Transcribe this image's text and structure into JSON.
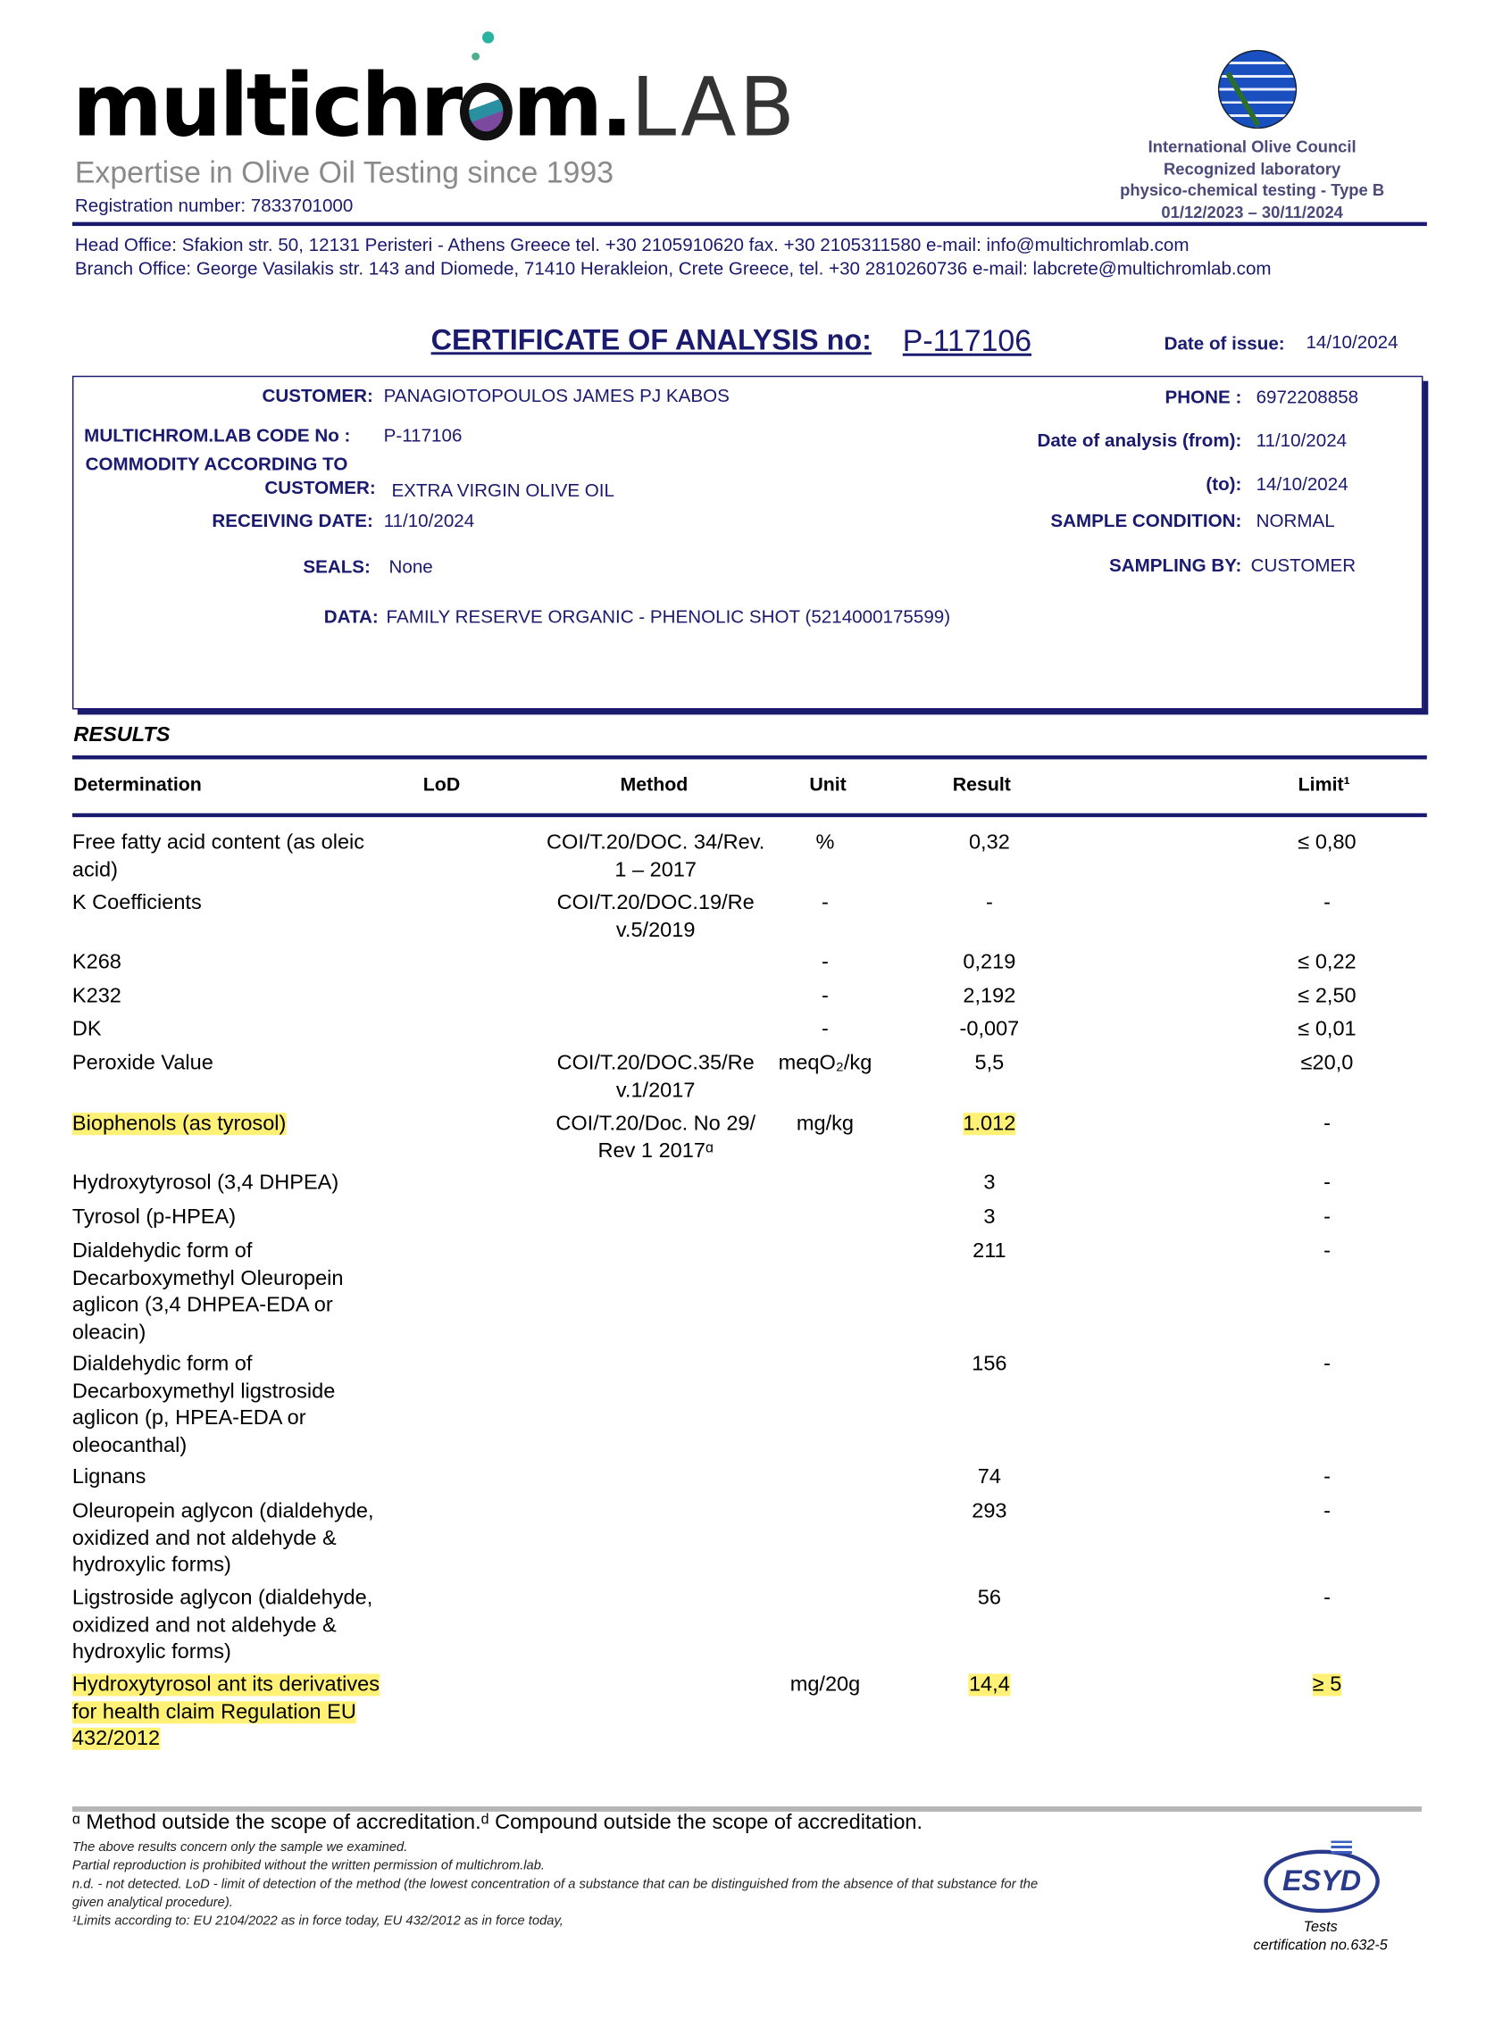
{
  "header": {
    "logo_text": "multichrom.LAB",
    "logo_main": "multichr",
    "logo_o": "o",
    "logo_m": "m.",
    "logo_lab": "LAB",
    "tagline": "Expertise in Olive Oil  Testing since 1993",
    "registration": "Registration number: 7833701000",
    "ioc_lines": [
      "International Olive Council",
      "Recognized laboratory",
      "physico-chemical testing - Type B",
      "01/12/2023 – 30/11/2024"
    ],
    "head_office": "Head Office: Sfakion  str. 50,  12131  Peristeri  -  Athens  Greece  tel. +30 2105910620  fax. +30 2105311580  e-mail: info@multichromlab.com",
    "branch_office": "Branch Office: George Vasilakis str. 143 and Diomede,  71410  Herakleion, Crete  Greece,  tel. +30  2810260736  e-mail: labcrete@multichromlab.com"
  },
  "certificate": {
    "title": "CERTIFICATE OF ANALYSIS no:",
    "number": "P-117106",
    "issue_label": "Date of issue:",
    "issue_date": "14/10/2024"
  },
  "info": {
    "customer_label": "CUSTOMER:",
    "customer": "PANAGIOTOPOULOS  JAMES   PJ KABOS",
    "code_label": "MULTICHROM.LAB CODE No :",
    "code": "P-117106",
    "commodity_label_1": "COMMODITY ACCORDING TO",
    "commodity_label_2": "CUSTOMER:",
    "commodity": "EXTRA VIRGIN OLIVE OIL",
    "receiving_label": "RECEIVING DATE:",
    "receiving": "11/10/2024",
    "seals_label": "SEALS:",
    "seals": "None",
    "data_label": "DATA:",
    "data": "FAMILY RESERVE ORGANIC - PHENOLIC SHOT (5214000175599)",
    "phone_label": "PHONE :",
    "phone": "6972208858",
    "from_label": "Date of analysis (from):",
    "from": "11/10/2024",
    "to_label": "(to):",
    "to": "14/10/2024",
    "condition_label": "SAMPLE CONDITION:",
    "condition": "NORMAL",
    "sampling_label": "SAMPLING BY:",
    "sampling": "CUSTOMER"
  },
  "results": {
    "heading": "RESULTS",
    "columns": [
      "Determination",
      "LoD",
      "Method",
      "Unit",
      "Result",
      "Limit¹"
    ],
    "rows": [
      {
        "det": "Free fatty acid content (as oleic acid)",
        "lod": "",
        "method": "COI/T.20/DOC. 34/Rev. 1 – 2017",
        "unit": "%",
        "result": "0,32",
        "limit": "≤ 0,80"
      },
      {
        "det": "K Coefficients",
        "lod": "",
        "method": "COI/T.20/DOC.19/Re v.5/2019",
        "unit": "-",
        "result": "-",
        "limit": "-"
      },
      {
        "det": "K268",
        "lod": "",
        "method": "",
        "unit": "-",
        "result": "0,219",
        "limit": "≤ 0,22"
      },
      {
        "det": "K232",
        "lod": "",
        "method": "",
        "unit": "-",
        "result": "2,192",
        "limit": "≤ 2,50"
      },
      {
        "det": "DK",
        "lod": "",
        "method": "",
        "unit": "-",
        "result": "-0,007",
        "limit": "≤ 0,01"
      },
      {
        "det": "Peroxide Value",
        "lod": "",
        "method": "COI/T.20/DOC.35/Re v.1/2017",
        "unit": "meqO₂/kg",
        "result": "5,5",
        "limit": "≤20,0"
      },
      {
        "det": "Biophenols (as tyrosol)",
        "lod": "",
        "method": "COI/T.20/Doc. No 29/ Rev 1 2017ᵅ",
        "unit": "mg/kg",
        "result": "1.012",
        "limit": "-",
        "highlight": true
      },
      {
        "det": "Hydroxytyrosol (3,4 DHPEA)",
        "lod": "",
        "method": "",
        "unit": "",
        "result": "3",
        "limit": "-"
      },
      {
        "det": "Tyrosol (p-HPEA)",
        "lod": "",
        "method": "",
        "unit": "",
        "result": "3",
        "limit": "-"
      },
      {
        "det": "Dialdehydic form of Decarboxymethyl Oleuropein aglicon  (3,4 DHPEA-EDA or oleacin)",
        "lod": "",
        "method": "",
        "unit": "",
        "result": "211",
        "limit": "-"
      },
      {
        "det": "Dialdehydic form of Decarboxymethyl ligstroside aglicon  (p, HPEA-EDA or oleocanthal)",
        "lod": "",
        "method": "",
        "unit": "",
        "result": "156",
        "limit": "-"
      },
      {
        "det": "Lignans",
        "lod": "",
        "method": "",
        "unit": "",
        "result": "74",
        "limit": "-"
      },
      {
        "det": "Oleuropein aglycon (dialdehyde, oxidized and not aldehyde & hydroxylic forms)",
        "lod": "",
        "method": "",
        "unit": "",
        "result": "293",
        "limit": "-"
      },
      {
        "det": "Ligstroside aglycon (dialdehyde, oxidized and not aldehyde & hydroxylic forms)",
        "lod": "",
        "method": "",
        "unit": "",
        "result": "56",
        "limit": "-"
      },
      {
        "det": "Hydroxytyrosol ant its derivatives for health claim Regulation EU 432/2012",
        "lod": "",
        "method": "",
        "unit": "mg/20g",
        "result": "14,4",
        "limit": "≥ 5",
        "highlight": true,
        "highlight_limit": true
      }
    ]
  },
  "footer": {
    "accreditation_note": "ᵅ Method outside the scope of accreditation.ᵈ Compound outside the scope of accreditation.",
    "notes": [
      "The above results concern only the sample we examined.",
      "Partial reproduction is prohibited without the written permission of multichrom.lab.",
      "n.d. - not detected. LoD - limit of detection of the method (the lowest concentration of a substance that can be distinguished from the absence of that substance for the",
      "given analytical procedure).",
      "¹Limits according to: EU 2104/2022 as in force today, EU 432/2012 as in force today,"
    ],
    "esyd_logo": "ESYD",
    "esyd_caption_1": "Tests",
    "esyd_caption_2": "certification no.632-5"
  },
  "colors": {
    "navy": "#1a1a6e",
    "highlight": "#fff176",
    "gray_rule": "#b5b5b5"
  }
}
